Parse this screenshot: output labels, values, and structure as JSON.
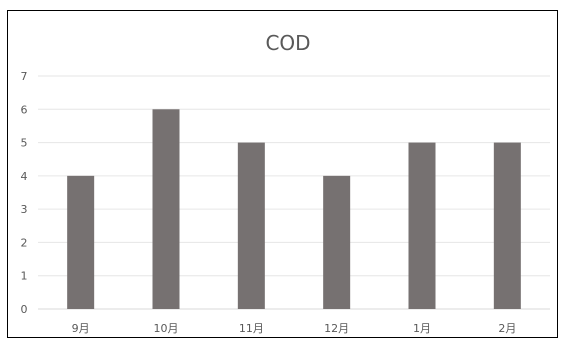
{
  "chart_data": {
    "type": "bar",
    "title": "COD",
    "categories": [
      "9月",
      "10月",
      "11月",
      "12月",
      "1月",
      "2月"
    ],
    "series": [
      {
        "values": [
          4,
          6,
          5,
          4,
          5,
          5
        ]
      }
    ],
    "ylim": [
      0,
      7
    ],
    "yticks": [
      0,
      1,
      2,
      3,
      4,
      5,
      6,
      7
    ],
    "grid": true,
    "legend": "none",
    "xlabel": "",
    "ylabel": "",
    "colors": {
      "bar": "#767171",
      "grid": "#e6e6e6",
      "axis": "#d9d9d9",
      "text": "#595959"
    }
  }
}
